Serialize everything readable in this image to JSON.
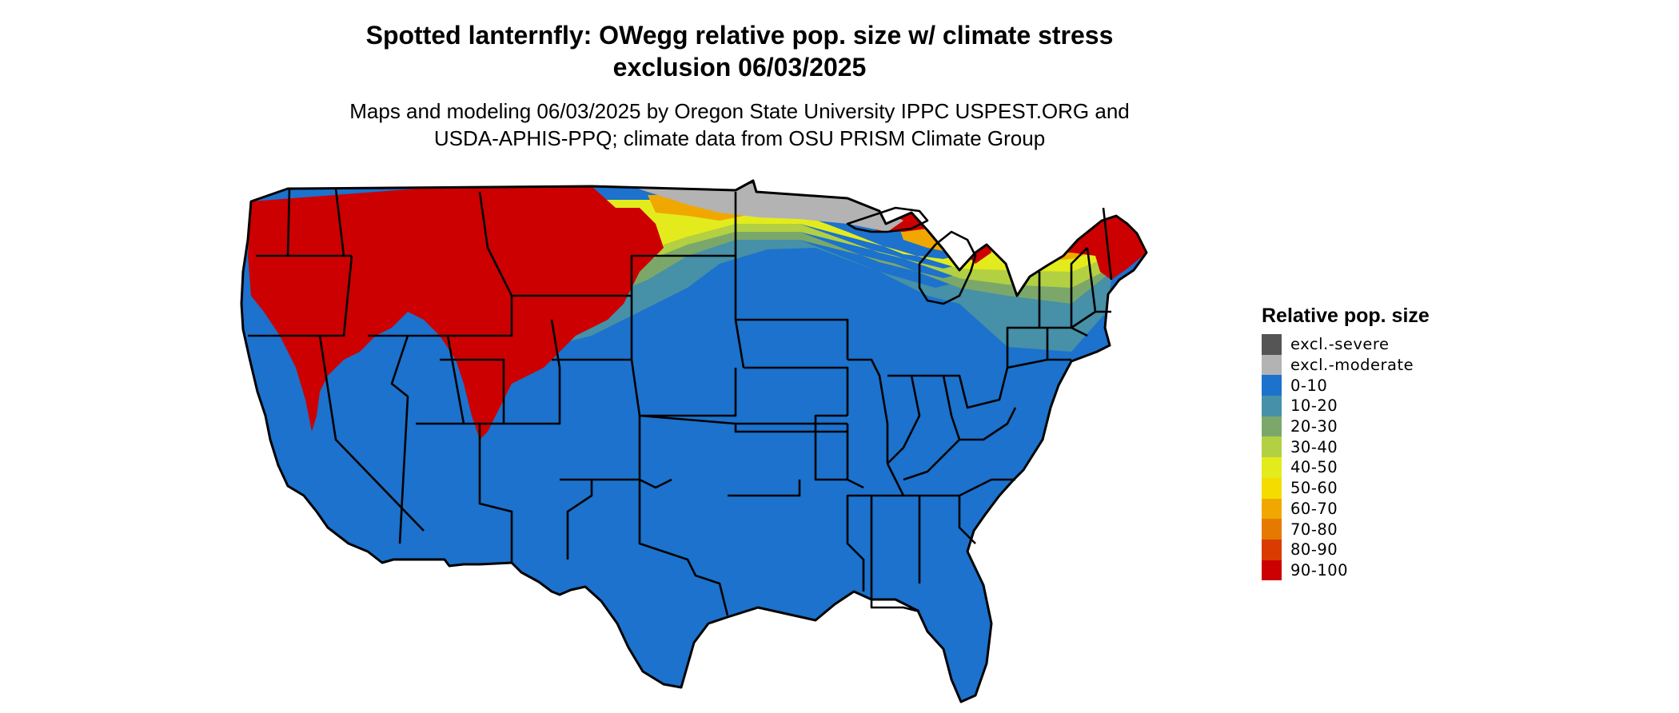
{
  "map": {
    "title_line1": "Spotted lanternfly: OWegg relative pop. size w/ climate stress",
    "title_line2": "exclusion 06/03/2025",
    "subtitle_line1": "Maps and modeling 06/03/2025 by Oregon State University IPPC USPEST.ORG and",
    "subtitle_line2": "USDA-APHIS-PPQ; climate data from OSU PRISM Climate Group",
    "region": "Contiguous United States",
    "colors": {
      "excl_severe": "#555555",
      "excl_moderate": "#b3b3b3",
      "c0_10": "#1c72cc",
      "c10_20": "#4690a8",
      "c20_30": "#7ba86a",
      "c30_40": "#b3d043",
      "c40_50": "#e3eb1d",
      "c50_60": "#f5dc00",
      "c60_70": "#f0a800",
      "c70_80": "#e67a00",
      "c80_90": "#d93b00",
      "c90_100": "#cc0000",
      "border": "#000000"
    }
  },
  "legend": {
    "title": "Relative pop. size",
    "items": [
      {
        "label": "excl.-severe",
        "color": "#555555"
      },
      {
        "label": "excl.-moderate",
        "color": "#b3b3b3"
      },
      {
        "label": "0-10",
        "color": "#1c72cc"
      },
      {
        "label": "10-20",
        "color": "#4690a8"
      },
      {
        "label": "20-30",
        "color": "#7ba86a"
      },
      {
        "label": "30-40",
        "color": "#b3d043"
      },
      {
        "label": "40-50",
        "color": "#e3eb1d"
      },
      {
        "label": "50-60",
        "color": "#f5dc00"
      },
      {
        "label": "60-70",
        "color": "#f0a800"
      },
      {
        "label": "70-80",
        "color": "#e67a00"
      },
      {
        "label": "80-90",
        "color": "#d93b00"
      },
      {
        "label": "90-100",
        "color": "#cc0000"
      }
    ]
  }
}
